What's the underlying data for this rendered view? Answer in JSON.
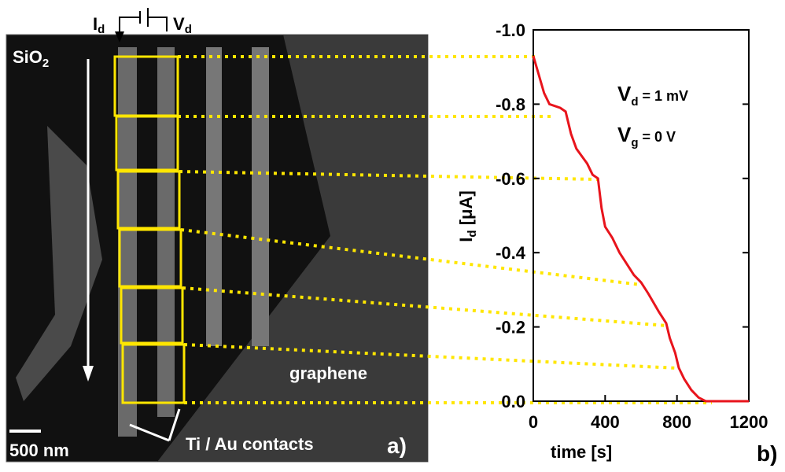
{
  "panel_a": {
    "id_label": [
      "I",
      "d"
    ],
    "vd_label": [
      "V",
      "d"
    ],
    "substrate": [
      "SiO",
      "2"
    ],
    "graphene_label": "graphene",
    "scale_bar": "500 nm",
    "contacts_label": "Ti / Au contacts",
    "panel_label": "a)"
  },
  "chart_data": {
    "type": "line",
    "panel_label": "b)",
    "xlabel": "time [s]",
    "ylabel": [
      "I",
      "d",
      " [μA]"
    ],
    "annotations": [
      [
        "V",
        "d",
        " = 1 mV"
      ],
      [
        "V",
        "g",
        " = 0 V"
      ]
    ],
    "xlim": [
      0,
      1200
    ],
    "xticks": [
      0,
      400,
      800,
      1200
    ],
    "ylim": [
      0,
      -1
    ],
    "yticks": [
      {
        "value": -1,
        "label": "-1.0"
      },
      -0.8,
      -0.6,
      -0.4,
      -0.2,
      {
        "value": 0,
        "label": "0.0"
      }
    ],
    "x": [
      0,
      30,
      60,
      90,
      150,
      180,
      210,
      240,
      270,
      300,
      330,
      360,
      380,
      400,
      440,
      480,
      520,
      560,
      600,
      640,
      700,
      740,
      760,
      790,
      810,
      840,
      880,
      920,
      960,
      1200
    ],
    "series": [
      {
        "color": "#e8141c",
        "values": [
          -0.93,
          -0.88,
          -0.83,
          -0.8,
          -0.79,
          -0.78,
          -0.72,
          -0.68,
          -0.66,
          -0.64,
          -0.61,
          -0.6,
          -0.52,
          -0.47,
          -0.44,
          -0.4,
          -0.37,
          -0.34,
          -0.32,
          -0.29,
          -0.24,
          -0.21,
          -0.17,
          -0.13,
          -0.09,
          -0.06,
          -0.03,
          -0.01,
          0,
          0
        ]
      }
    ]
  }
}
